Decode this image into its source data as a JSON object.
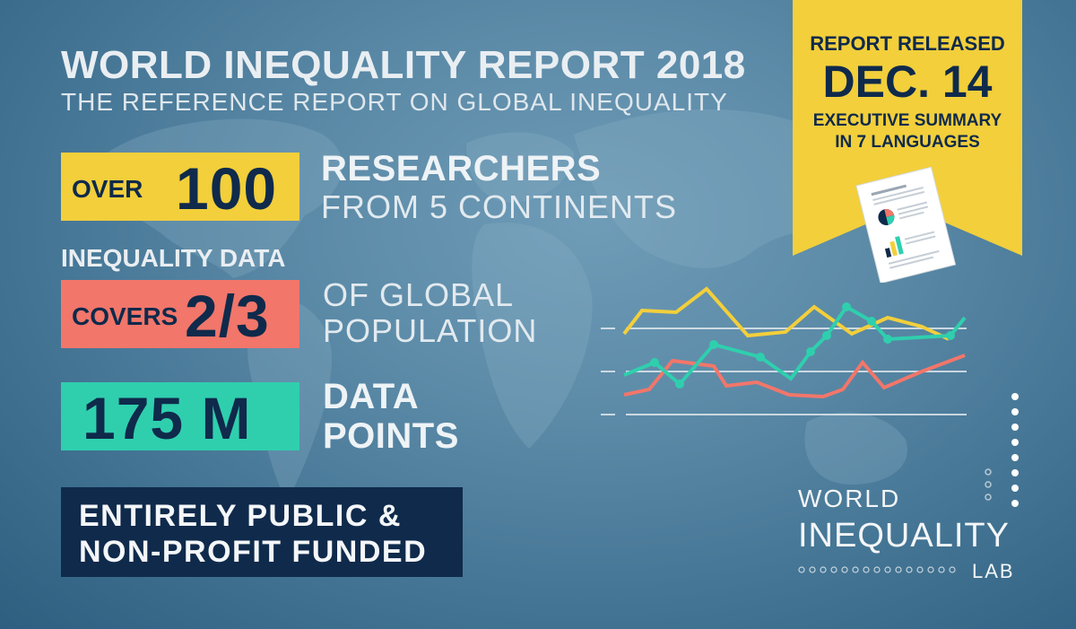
{
  "header": {
    "title": "WORLD INEQUALITY REPORT 2018",
    "subtitle": "THE REFERENCE REPORT ON GLOBAL INEQUALITY"
  },
  "stats": {
    "researchers": {
      "prefix": "OVER",
      "number": "100",
      "line1": "RESEARCHERS",
      "line2": "FROM 5 CONTINENTS"
    },
    "coverage": {
      "above": "INEQUALITY DATA",
      "prefix": "COVERS",
      "number": "2/3",
      "line1": "OF GLOBAL",
      "line2": "POPULATION"
    },
    "datapoints": {
      "number": "175 M",
      "line1": "DATA",
      "line2": "POINTS"
    }
  },
  "funding": {
    "line1": "ENTIRELY PUBLIC &",
    "line2": "NON-PROFIT FUNDED"
  },
  "release": {
    "label": "REPORT RELEASED",
    "date": "DEC. 14",
    "summary1": "EXECUTIVE SUMMARY",
    "summary2": "IN 7 LANGUAGES"
  },
  "lab_logo": {
    "line1": "WORLD",
    "line2": "INEQUALITY",
    "line3": "LAB"
  },
  "colors": {
    "yellow": "#f2cf3b",
    "coral": "#f2766a",
    "teal": "#2fcfae",
    "navy": "#0f2a4b"
  },
  "icons": [
    "document-icon",
    "pie-chart-icon",
    "bar-chart-icon",
    "line-chart-icon",
    "dotted-line-icon"
  ]
}
